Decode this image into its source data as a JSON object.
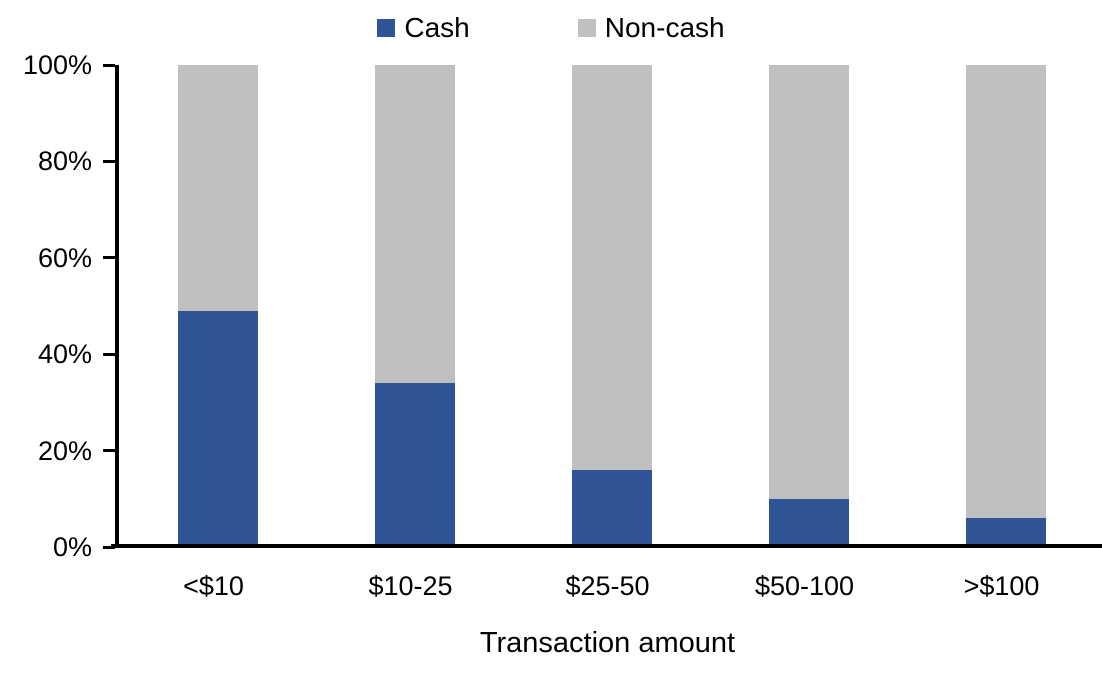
{
  "chart_data": {
    "type": "bar",
    "stacked": true,
    "orientation": "vertical",
    "title": "",
    "xlabel": "Transaction amount",
    "ylabel": "",
    "categories": [
      "<$10",
      "$10-25",
      "$25-50",
      "$50-100",
      ">$100"
    ],
    "series": [
      {
        "name": "Cash",
        "color": "#2F5596",
        "values": [
          49,
          34,
          16,
          10,
          6
        ]
      },
      {
        "name": "Non-cash",
        "color": "#BFBFBF",
        "values": [
          51,
          66,
          84,
          90,
          94
        ]
      }
    ],
    "ylim": [
      0,
      100
    ],
    "yticks": [
      {
        "label": "0%",
        "value": 0
      },
      {
        "label": "20%",
        "value": 20
      },
      {
        "label": "40%",
        "value": 40
      },
      {
        "label": "60%",
        "value": 60
      },
      {
        "label": "80%",
        "value": 80
      },
      {
        "label": "100%",
        "value": 100
      }
    ],
    "legend_position": "top",
    "grid": false,
    "axis_color": "#000000",
    "background_color": "#FFFFFF"
  }
}
